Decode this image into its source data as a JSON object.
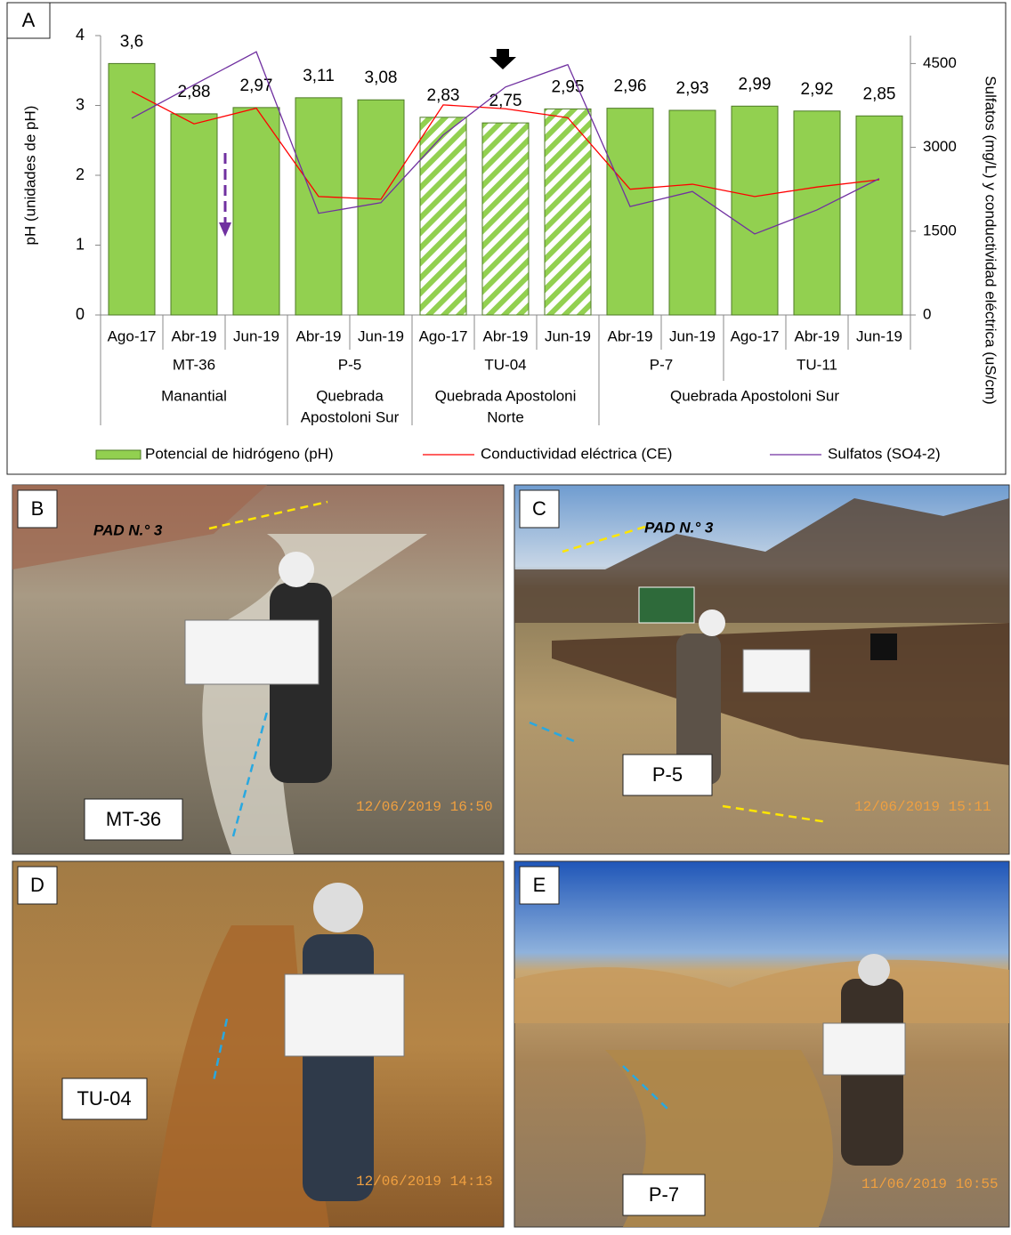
{
  "panel_label": "A",
  "chart_data": {
    "type": "bar",
    "y_label": "pH (unidades de pH)",
    "y2_label": "Sulfatos (mg/L) y conductividad eléctrica (uS/cm)",
    "categories": [
      "Ago-17",
      "Abr-19",
      "Jun-19",
      "Abr-19",
      "Jun-19",
      "Ago-17",
      "Abr-19",
      "Jun-19",
      "Abr-19",
      "Jun-19",
      "Ago-17",
      "Abr-19",
      "Jun-19"
    ],
    "sites": [
      {
        "name": "MT-36",
        "count": 3
      },
      {
        "name": "P-5",
        "count": 2
      },
      {
        "name": "TU-04",
        "count": 3
      },
      {
        "name": "P-7",
        "count": 2
      },
      {
        "name": "TU-11",
        "count": 3
      }
    ],
    "areas": [
      {
        "lines": [
          "Manantial"
        ],
        "count": 3
      },
      {
        "lines": [
          "Quebrada",
          "Apostoloni Sur"
        ],
        "count": 2
      },
      {
        "lines": [
          "Quebrada Apostoloni",
          "Norte"
        ],
        "count": 3
      },
      {
        "lines": [
          "Quebrada Apostoloni Sur"
        ],
        "count": 5
      }
    ],
    "series": [
      {
        "name": "Potencial de hidrógeno (pH)",
        "type": "bar",
        "color": "#92d050",
        "values": [
          3.6,
          2.88,
          2.97,
          3.11,
          3.08,
          2.83,
          2.75,
          2.95,
          2.96,
          2.93,
          2.99,
          2.92,
          2.85
        ],
        "value_labels": [
          "3,6",
          "2,88",
          "2,97",
          "3,11",
          "3,08",
          "2,83",
          "2,75",
          "2,95",
          "2,96",
          "2,93",
          "2,99",
          "2,92",
          "2,85"
        ],
        "hatched": [
          false,
          false,
          false,
          false,
          false,
          true,
          true,
          true,
          false,
          false,
          false,
          false,
          false
        ]
      },
      {
        "name": "Conductividad eléctrica (CE)",
        "type": "line",
        "axis": "y2",
        "color": "#ff0000",
        "values": [
          4000,
          3420,
          3700,
          2120,
          2070,
          3760,
          3690,
          3530,
          2250,
          2340,
          2120,
          2290,
          2420
        ]
      },
      {
        "name": "Sulfatos (SO4-2)",
        "type": "line",
        "axis": "y2",
        "color": "#7030a0",
        "values": [
          3520,
          4120,
          4710,
          1820,
          2010,
          3220,
          4080,
          4480,
          1940,
          2210,
          1450,
          1880,
          2440
        ]
      }
    ],
    "ylim": [
      0,
      4
    ],
    "yticks": [
      0,
      1,
      2,
      3,
      4
    ],
    "y2lim": [
      0,
      5000
    ],
    "y2ticks": [
      0,
      1500,
      3000,
      4500
    ],
    "grid": false,
    "legend": "bottom"
  },
  "photos": [
    {
      "panel": "B",
      "site": "MT-36",
      "timestamp": "12/06/2019 16:50",
      "annotation": "PAD N.° 3"
    },
    {
      "panel": "C",
      "site": "P-5",
      "timestamp": "12/06/2019 15:11",
      "annotation": "PAD N.° 3"
    },
    {
      "panel": "D",
      "site": "TU-04",
      "timestamp": "12/06/2019 14:13"
    },
    {
      "panel": "E",
      "site": "P-7",
      "timestamp": "11/06/2019 10:55"
    }
  ]
}
